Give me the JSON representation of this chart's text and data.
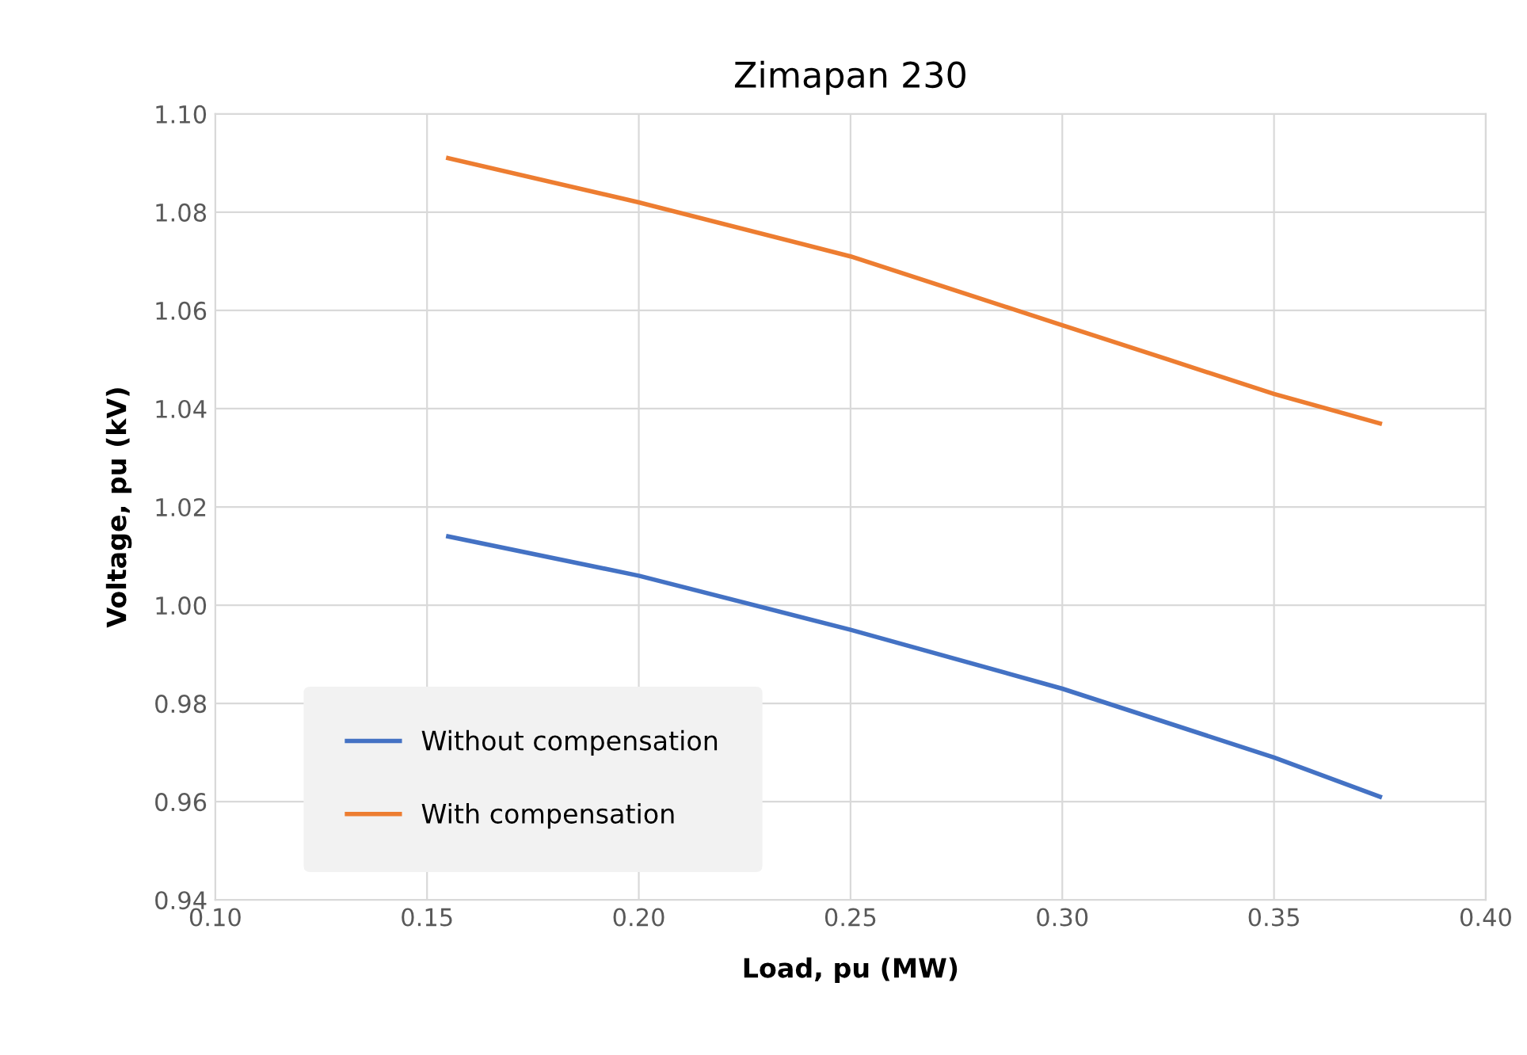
{
  "chart_data": {
    "type": "line",
    "title": "Zimapan 230",
    "xlabel": "Load, pu (MW)",
    "ylabel": "Voltage, pu (kV)",
    "x": [
      0.155,
      0.2,
      0.25,
      0.3,
      0.35,
      0.375
    ],
    "series": [
      {
        "name": "Without compensation",
        "color": "#4472c4",
        "values": [
          1.014,
          1.006,
          0.995,
          0.983,
          0.969,
          0.961
        ]
      },
      {
        "name": "With compensation",
        "color": "#ed7d31",
        "x": [
          0.155,
          0.2,
          0.25,
          0.275,
          0.3,
          0.325,
          0.35,
          0.375
        ],
        "values": [
          1.091,
          1.082,
          1.071,
          1.064,
          1.057,
          1.05,
          1.043,
          1.037
        ]
      }
    ],
    "xlim": [
      0.1,
      0.4
    ],
    "xticks": [
      {
        "value": 0.1,
        "label": "0.10"
      },
      {
        "value": 0.15,
        "label": "0.15"
      },
      {
        "value": 0.2,
        "label": "0.20"
      },
      {
        "value": 0.25,
        "label": "0.25"
      },
      {
        "value": 0.3,
        "label": "0.30"
      },
      {
        "value": 0.35,
        "label": "0.35"
      },
      {
        "value": 0.4,
        "label": "0.40"
      }
    ],
    "ylim": [
      0.94,
      1.1
    ],
    "yticks": [
      {
        "value": 0.94,
        "label": "0.94"
      },
      {
        "value": 0.96,
        "label": "0.96"
      },
      {
        "value": 0.98,
        "label": "0.98"
      },
      {
        "value": 1.0,
        "label": "1.00"
      },
      {
        "value": 1.02,
        "label": "1.02"
      },
      {
        "value": 1.04,
        "label": "1.04"
      },
      {
        "value": 1.06,
        "label": "1.06"
      },
      {
        "value": 1.08,
        "label": "1.08"
      },
      {
        "value": 1.1,
        "label": "1.10"
      }
    ],
    "grid": true,
    "legend": "lower left",
    "marker": "none",
    "line_style": "solid"
  }
}
